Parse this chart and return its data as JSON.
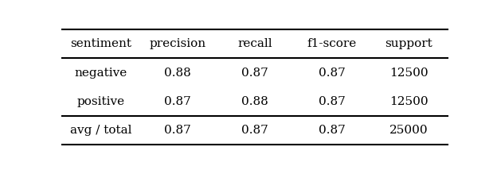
{
  "columns": [
    "sentiment",
    "precision",
    "recall",
    "f1-score",
    "support"
  ],
  "rows": [
    [
      "negative",
      "0.88",
      "0.87",
      "0.87",
      "12500"
    ],
    [
      "positive",
      "0.87",
      "0.88",
      "0.87",
      "12500"
    ],
    [
      "avg / total",
      "0.87",
      "0.87",
      "0.87",
      "25000"
    ]
  ],
  "background_color": "#ffffff",
  "text_color": "#000000",
  "font_size": 11,
  "line_width": 1.5,
  "fig_width": 6.24,
  "fig_height": 2.14
}
